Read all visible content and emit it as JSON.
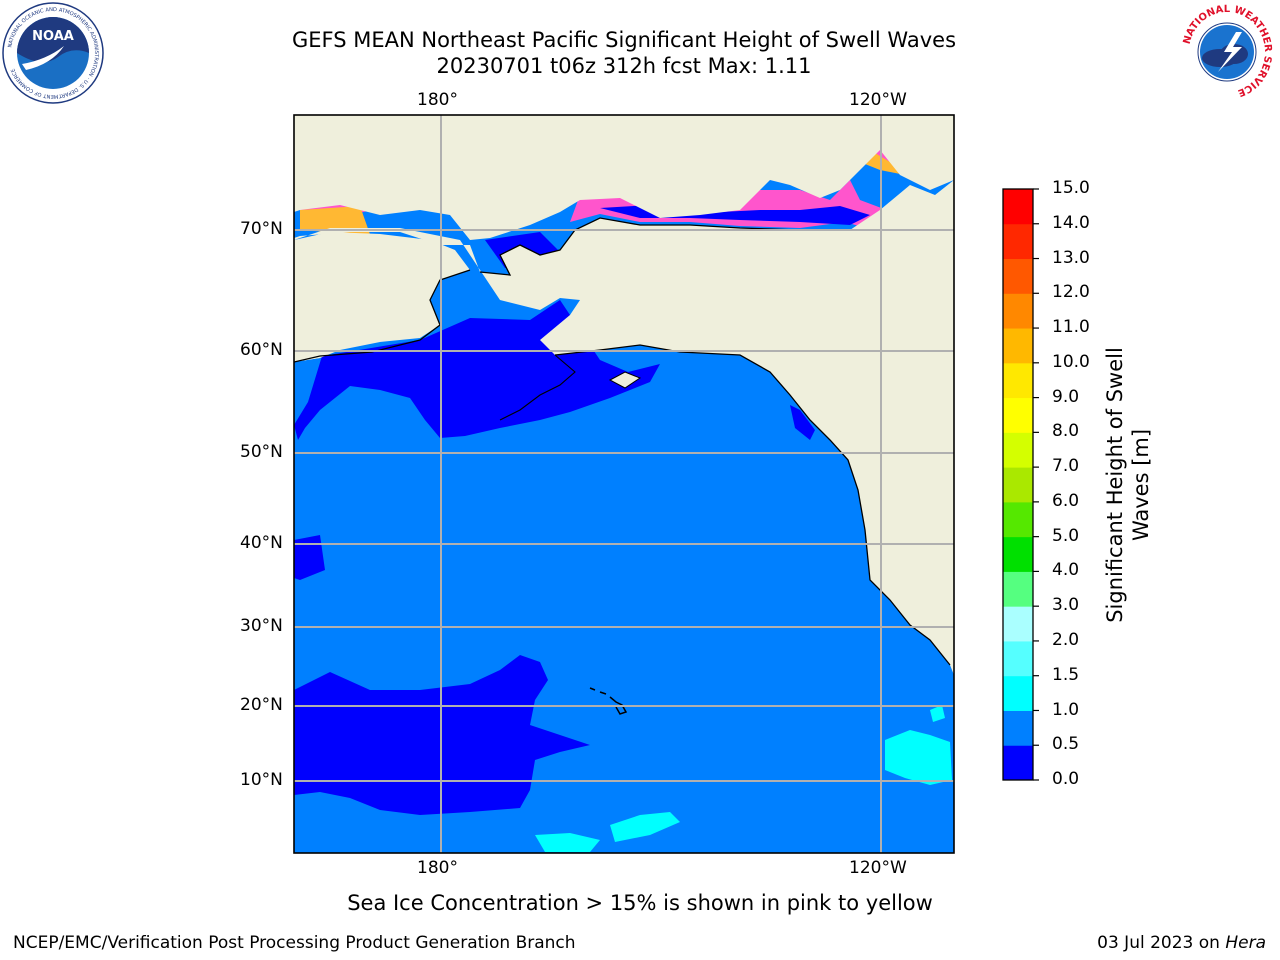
{
  "title": {
    "line1": "GEFS MEAN Northeast Pacific Significant Height of Swell Waves",
    "line2": "20230701 t06z 312h fcst   Max: 1.11"
  },
  "map": {
    "lon_labels_top": [
      "180°",
      "120°W"
    ],
    "lon_labels_bottom": [
      "180°",
      "120°W"
    ],
    "lat_labels": [
      "70°N",
      "60°N",
      "50°N",
      "40°N",
      "30°N",
      "20°N",
      "10°N"
    ],
    "gridlines": true,
    "colors": {
      "land": "#efefdc",
      "ocean_0_5": "#0000fe",
      "ocean_0_5_1_0": "#0080ff",
      "ocean_1_0_1_5": "#00ffff",
      "sea_ice_low": "#ff55cc",
      "sea_ice_high": "#ffb833"
    }
  },
  "colorbar": {
    "title": "Significant Height of Swell Waves [m]",
    "title_line1": "Significant Height of Swell",
    "title_line2": "Waves [m]",
    "ticks": [
      "15.0",
      "14.0",
      "13.0",
      "12.0",
      "11.0",
      "10.0",
      "9.0",
      "8.0",
      "7.0",
      "6.0",
      "5.0",
      "4.0",
      "3.0",
      "2.0",
      "1.5",
      "1.0",
      "0.5",
      "0.0"
    ],
    "levels": [
      0.0,
      0.5,
      1.0,
      1.5,
      2.0,
      3.0,
      4.0,
      5.0,
      6.0,
      7.0,
      8.0,
      9.0,
      10.0,
      11.0,
      12.0,
      13.0,
      14.0,
      15.0
    ],
    "colors": [
      "#0000fe",
      "#0080ff",
      "#00ffff",
      "#55ffff",
      "#aaffff",
      "#55ff80",
      "#00e000",
      "#55e800",
      "#aae800",
      "#d4ff00",
      "#ffff00",
      "#ffe800",
      "#ffb800",
      "#ff8800",
      "#ff5800",
      "#ff2800",
      "#ff0000"
    ]
  },
  "note": "Sea Ice Concentration > 15% is shown in pink to yellow",
  "footer": {
    "left": "NCEP/EMC/Verification Post Processing Product Generation Branch",
    "right_prefix": "03 Jul 2023 on ",
    "right_host": "Hera"
  },
  "logos": {
    "noaa": "NOAA",
    "noaa_ring": "NATIONAL OCEANIC AND ATMOSPHERIC ADMINISTRATION · U.S. DEPARTMENT OF COMMERCE",
    "nws_ring": "NATIONAL WEATHER SERVICE"
  }
}
